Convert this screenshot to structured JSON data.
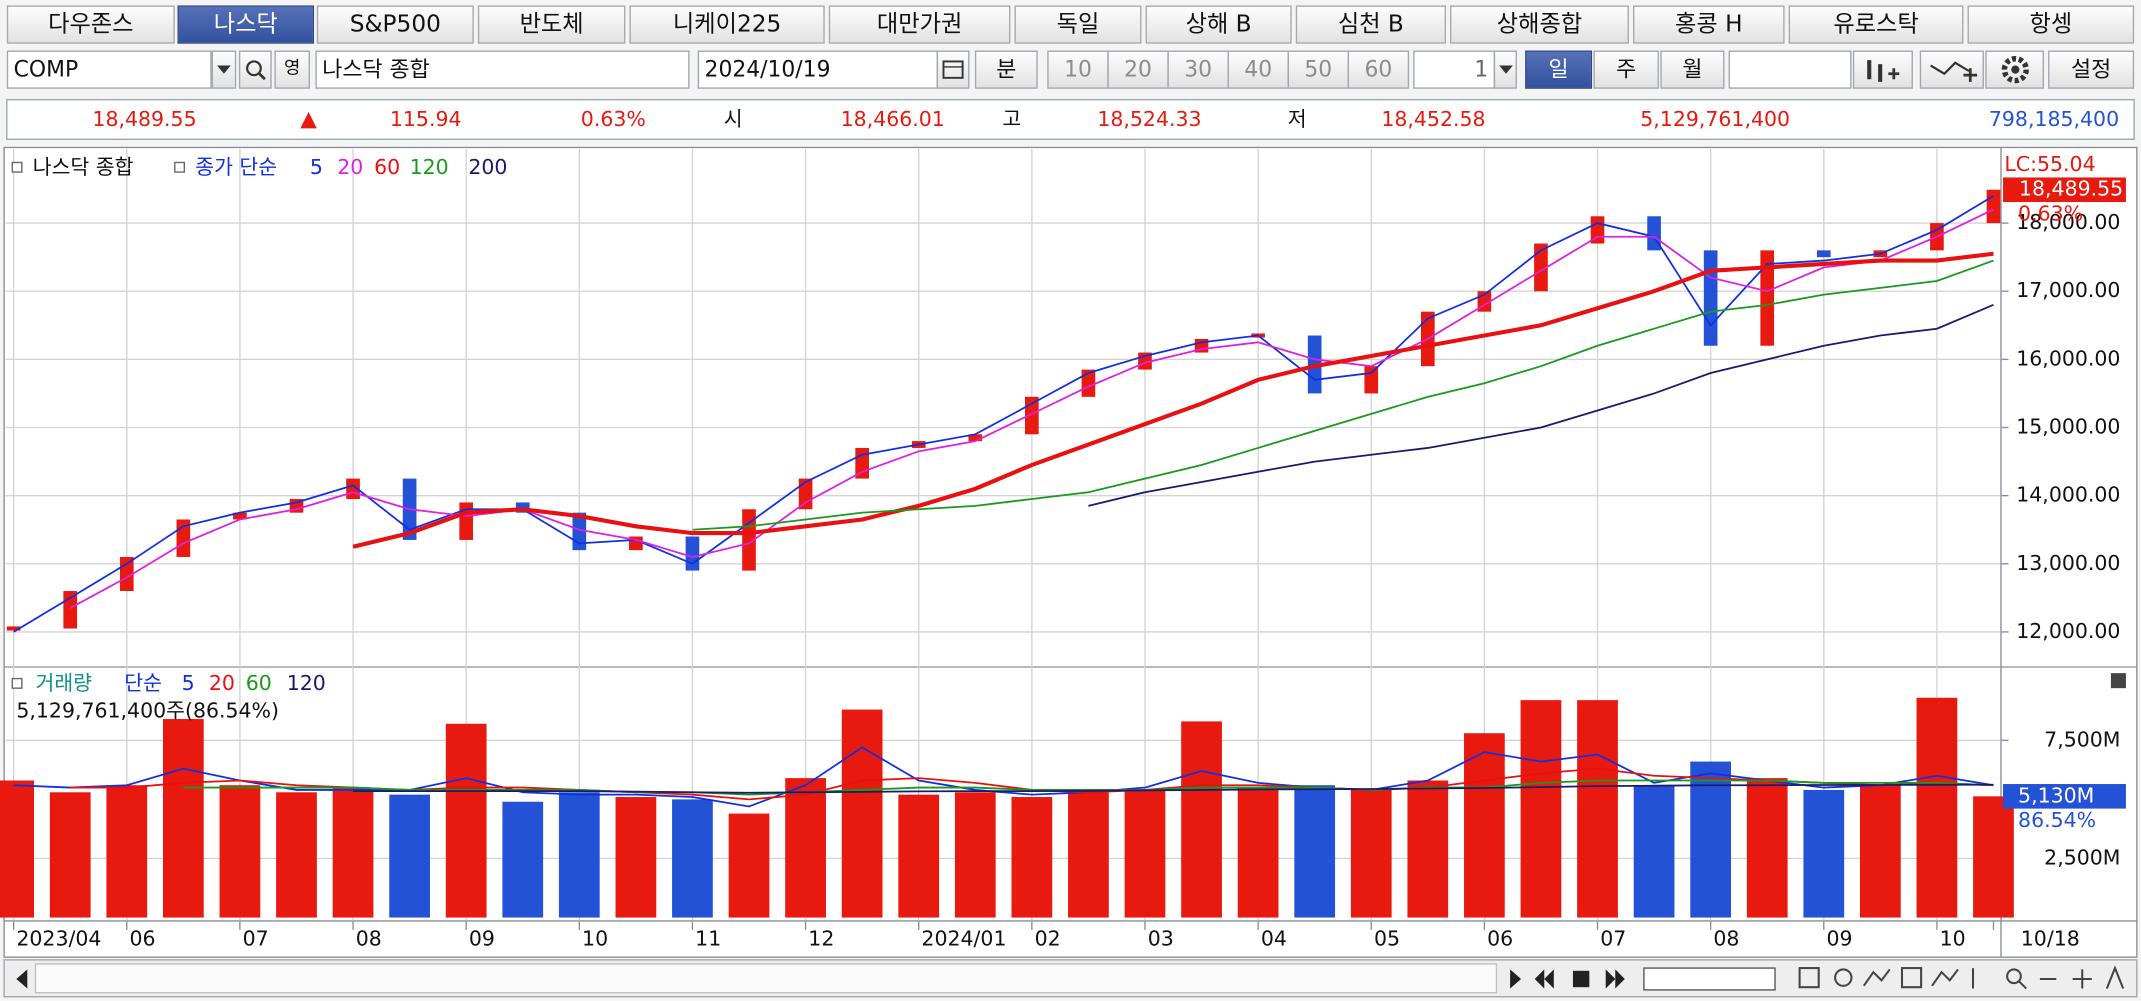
{
  "tabs": [
    "다우존스",
    "나스닥",
    "S&P500",
    "반도체",
    "니케이225",
    "대만가권",
    "독일",
    "상해 B",
    "심천 B",
    "상해종합",
    "홍콩 H",
    "유로스탁",
    "항셍"
  ],
  "toolbar": {
    "code": "COMP",
    "lang": "영",
    "name": "나스닥 종합",
    "date": "2024/10/19",
    "minute": "분",
    "periods": [
      "10",
      "20",
      "30",
      "40",
      "50",
      "60"
    ],
    "count": "1",
    "day": "일",
    "week": "주",
    "month": "월",
    "settings": "설정"
  },
  "quote": {
    "last": "18,489.55",
    "change": "115.94",
    "change_pct": "0.63%",
    "open_label": "시",
    "open": "18,466.01",
    "high_label": "고",
    "high": "18,524.33",
    "low_label": "저",
    "low": "18,452.58",
    "volume": "5,129,761,400",
    "amount": "798,185,400"
  },
  "chart_data": [
    {
      "type": "line",
      "legend_label": "종가 단순",
      "up_color": "#e8190f",
      "down_color": "#2452d6",
      "grid": true,
      "categories": [
        "2023/04",
        null,
        "06",
        null,
        "07",
        null,
        "08",
        null,
        "09",
        null,
        "10",
        null,
        "11",
        null,
        "12",
        null,
        "2024/01",
        null,
        "02",
        null,
        "03",
        null,
        "04",
        null,
        "05",
        null,
        "06",
        null,
        "07",
        null,
        "08",
        null,
        "09",
        null,
        "10",
        "10/18"
      ],
      "series": [
        {
          "name": "나스닥 종합",
          "values": [
            12050,
            12600,
            13100,
            13650,
            13750,
            13950,
            14250,
            13350,
            13900,
            13750,
            13200,
            13400,
            12900,
            13800,
            14250,
            14700,
            14800,
            14900,
            15450,
            15850,
            16100,
            16300,
            16350,
            15500,
            15900,
            16700,
            17000,
            17700,
            18100,
            17600,
            16200,
            17600,
            17500,
            17600,
            18000,
            18489.55
          ]
        },
        {
          "name": "5",
          "color": "#1030e0",
          "values": [
            12000,
            12500,
            13000,
            13550,
            13750,
            13900,
            14150,
            13500,
            13800,
            13800,
            13300,
            13350,
            13000,
            13600,
            14200,
            14600,
            14750,
            14900,
            15350,
            15800,
            16050,
            16250,
            16350,
            15700,
            15800,
            16600,
            16950,
            17600,
            18000,
            17800,
            16500,
            17400,
            17450,
            17550,
            17900,
            18400
          ]
        },
        {
          "name": "20",
          "color": "#e020e0",
          "values": [
            null,
            12350,
            12800,
            13300,
            13650,
            13800,
            14050,
            13800,
            13700,
            13800,
            13500,
            13350,
            13100,
            13300,
            13900,
            14350,
            14650,
            14800,
            15200,
            15600,
            15950,
            16150,
            16250,
            16000,
            15900,
            16300,
            16800,
            17300,
            17800,
            17800,
            17200,
            17000,
            17350,
            17450,
            17800,
            18200
          ]
        },
        {
          "name": "60",
          "color": "#e81010",
          "values": [
            null,
            null,
            null,
            null,
            null,
            null,
            13250,
            13450,
            13750,
            13800,
            13700,
            13550,
            13450,
            13450,
            13550,
            13650,
            13850,
            14100,
            14450,
            14750,
            15050,
            15350,
            15700,
            15900,
            16050,
            16200,
            16350,
            16500,
            16750,
            17000,
            17300,
            17350,
            17400,
            17450,
            17450,
            17550
          ]
        },
        {
          "name": "120",
          "color": "#1a9a1a",
          "values": [
            null,
            null,
            null,
            null,
            null,
            null,
            null,
            null,
            null,
            null,
            null,
            null,
            13500,
            13550,
            13650,
            13750,
            13800,
            13850,
            13950,
            14050,
            14250,
            14450,
            14700,
            14950,
            15200,
            15450,
            15650,
            15900,
            16200,
            16450,
            16700,
            16800,
            16950,
            17050,
            17150,
            17450
          ]
        },
        {
          "name": "200",
          "color": "#1a1a70",
          "values": [
            null,
            null,
            null,
            null,
            null,
            null,
            null,
            null,
            null,
            null,
            null,
            null,
            null,
            null,
            null,
            null,
            null,
            null,
            null,
            13850,
            14050,
            14200,
            14350,
            14500,
            14600,
            14700,
            14850,
            15000,
            15250,
            15500,
            15800,
            16000,
            16200,
            16350,
            16450,
            16800
          ]
        }
      ],
      "ylim": [
        11515,
        19070
      ],
      "yticks": [
        {
          "value": 12000,
          "label": "12,000.00"
        },
        {
          "value": 13000,
          "label": "13,000.00"
        },
        {
          "value": 14000,
          "label": "14,000.00"
        },
        {
          "value": 15000,
          "label": "15,000.00"
        },
        {
          "value": 16000,
          "label": "16,000.00"
        },
        {
          "value": 17000,
          "label": "17,000.00"
        },
        {
          "value": 18000,
          "label": "18,000.00"
        }
      ],
      "last_label": "LC:55.04",
      "last_value_label": "18,489.55",
      "last_change_label": "0.63%"
    },
    {
      "type": "bar",
      "legend_label": "단순",
      "caption": "5,129,761,400주(86.54%)",
      "grid": true,
      "series": [
        {
          "name": "거래량",
          "values": [
            5800,
            5300,
            5600,
            8400,
            5600,
            5300,
            5500,
            5200,
            8200,
            4900,
            5300,
            5100,
            5000,
            4400,
            5900,
            8800,
            5200,
            5300,
            5100,
            5300,
            5400,
            8300,
            5500,
            5600,
            5400,
            5800,
            7800,
            9200,
            9200,
            5600,
            6600,
            5900,
            5400,
            5600,
            9300,
            5130
          ]
        },
        {
          "name": "5",
          "color": "#1030e0",
          "values": [
            5600,
            5500,
            5600,
            6300,
            5800,
            5400,
            5400,
            5400,
            5900,
            5300,
            5200,
            5200,
            5100,
            4700,
            5600,
            7200,
            5800,
            5400,
            5200,
            5300,
            5500,
            6200,
            5700,
            5500,
            5400,
            5800,
            7000,
            6600,
            6900,
            5700,
            6100,
            5800,
            5500,
            5600,
            6000,
            5600
          ]
        },
        {
          "name": "20",
          "color": "#e81010",
          "values": [
            null,
            5500,
            5500,
            5700,
            5800,
            5600,
            5500,
            5400,
            5500,
            5500,
            5400,
            5300,
            5200,
            5000,
            5200,
            5800,
            5900,
            5700,
            5400,
            5300,
            5400,
            5600,
            5600,
            5500,
            5400,
            5500,
            5800,
            6100,
            6300,
            6000,
            5900,
            5800,
            5700,
            5600,
            5700,
            5600
          ]
        },
        {
          "name": "60",
          "color": "#1a9a1a",
          "values": [
            null,
            null,
            null,
            5500,
            5500,
            5500,
            5500,
            5400,
            5400,
            5400,
            5400,
            5300,
            5300,
            5200,
            5300,
            5400,
            5500,
            5500,
            5400,
            5400,
            5400,
            5500,
            5500,
            5500,
            5400,
            5500,
            5500,
            5700,
            5800,
            5800,
            5800,
            5800,
            5700,
            5700,
            5700,
            5600
          ]
        },
        {
          "name": "120",
          "color": "#1a1a70",
          "values": [
            null,
            null,
            null,
            null,
            null,
            null,
            5350,
            5350,
            5350,
            5350,
            5350,
            5330,
            5300,
            5280,
            5300,
            5320,
            5340,
            5350,
            5350,
            5360,
            5380,
            5400,
            5420,
            5430,
            5440,
            5460,
            5480,
            5520,
            5560,
            5580,
            5600,
            5600,
            5610,
            5610,
            5620,
            5620
          ]
        }
      ],
      "ylim": [
        0,
        10400
      ],
      "yticks": [
        {
          "value": 2500,
          "label": "2,500M"
        },
        {
          "value": 7500,
          "label": "7,500M"
        }
      ],
      "last_label": "5,130M",
      "ratio_label": "86.54%"
    }
  ]
}
